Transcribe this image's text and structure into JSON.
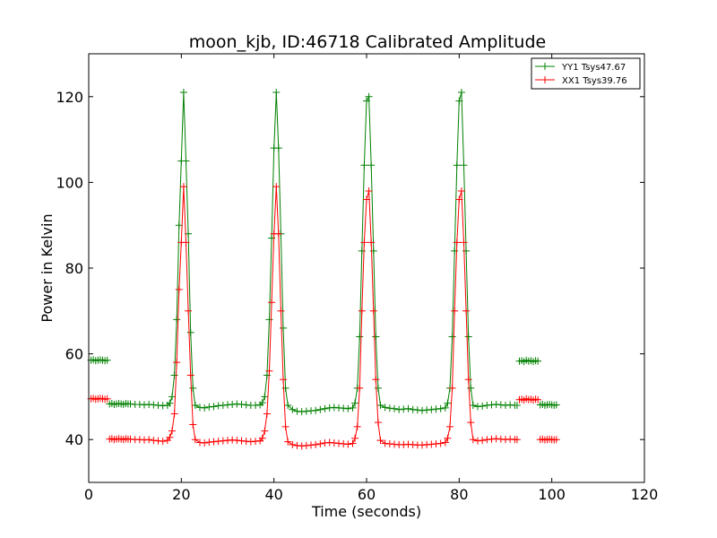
{
  "chart_data": {
    "type": "line",
    "title": "moon_kjb, ID:46718 Calibrated Amplitude",
    "xlabel": "Time (seconds)",
    "ylabel": "Power in Kelvin",
    "xlim": [
      0,
      120
    ],
    "ylim": [
      30,
      130
    ],
    "xticks": [
      0,
      20,
      40,
      60,
      80,
      100,
      120
    ],
    "yticks": [
      40,
      60,
      80,
      100,
      120
    ],
    "grid": false,
    "legend_position": "top-right",
    "marker": "+",
    "series": [
      {
        "name": "YY1 Tsys47.67",
        "color": "#008000",
        "segments": [
          {
            "x": [
              0.5,
              1.0,
              1.5,
              2.0,
              2.5,
              3.0,
              3.5,
              4.0
            ],
            "y": [
              58.5,
              58.6,
              58.4,
              58.5,
              58.6,
              58.5,
              58.4,
              58.5
            ]
          },
          {
            "x": [
              4.5,
              5.0,
              5.5,
              6.0,
              6.5,
              7.0,
              7.5,
              8.0,
              8.5,
              9.0
            ],
            "y": [
              48.3,
              48.4,
              48.2,
              48.3,
              48.4,
              48.3,
              48.2,
              48.4,
              48.3,
              48.3
            ]
          },
          {
            "x": [
              10.0,
              11.0,
              12.0,
              13.0,
              14.0,
              15.0,
              16.0,
              17.0,
              17.5,
              18.0,
              18.5,
              19.0,
              19.5,
              20.0,
              20.5,
              21.0,
              21.5,
              22.0,
              22.5,
              23.0,
              24.0,
              25.0,
              26.0,
              27.0,
              28.0,
              29.0,
              30.0,
              31.0,
              32.0,
              33.0,
              34.0,
              35.0,
              36.0,
              37.0,
              37.5,
              38.0,
              38.5,
              39.0,
              39.5,
              40.0,
              40.5,
              41.0,
              41.5,
              42.0,
              42.5,
              43.0,
              44.0,
              45.0,
              46.0,
              47.0,
              48.0,
              49.0,
              50.0,
              51.0,
              52.0,
              53.0,
              54.0,
              55.0,
              56.0,
              57.0,
              57.5,
              58.0,
              58.5,
              59.0,
              59.5,
              60.0,
              60.5,
              61.0,
              61.5,
              62.0,
              62.5,
              63.0,
              64.0,
              65.0,
              66.0,
              67.0,
              68.0,
              69.0,
              70.0,
              71.0,
              72.0,
              73.0,
              74.0,
              75.0,
              76.0,
              77.0,
              77.5,
              78.0,
              78.5,
              79.0,
              79.5,
              80.0,
              80.5,
              81.0,
              81.5,
              82.0,
              82.5,
              83.0,
              84.0,
              85.0,
              86.0,
              87.0,
              88.0,
              89.0,
              90.0,
              91.0,
              92.0,
              92.5
            ],
            "y": [
              48.2,
              48.2,
              48.1,
              48.2,
              48.1,
              48.0,
              47.9,
              48.0,
              48.5,
              50.0,
              55.0,
              68.0,
              90.0,
              105.0,
              121.0,
              105.0,
              88.0,
              65.0,
              52.0,
              48.0,
              47.5,
              47.4,
              47.6,
              47.7,
              47.9,
              48.0,
              48.1,
              48.2,
              48.3,
              48.2,
              48.1,
              48.0,
              48.0,
              48.1,
              48.6,
              50.0,
              55.0,
              68.0,
              87.0,
              108.0,
              121.0,
              108.0,
              88.0,
              66.0,
              52.0,
              48.0,
              47.0,
              46.6,
              46.5,
              46.6,
              46.7,
              46.8,
              47.0,
              47.2,
              47.4,
              47.5,
              47.4,
              47.3,
              47.2,
              47.4,
              48.5,
              52.0,
              64.0,
              84.0,
              104.0,
              119.0,
              120.0,
              104.0,
              84.0,
              64.0,
              52.0,
              48.0,
              47.5,
              47.3,
              47.2,
              47.0,
              47.1,
              47.2,
              47.0,
              46.9,
              46.8,
              46.9,
              47.0,
              47.1,
              47.2,
              47.4,
              48.5,
              52.0,
              64.0,
              84.0,
              104.0,
              119.0,
              121.0,
              104.0,
              84.0,
              64.0,
              52.0,
              48.0,
              47.7,
              47.8,
              48.0,
              48.1,
              48.2,
              48.1,
              48.0,
              48.1,
              48.0,
              48.0
            ]
          },
          {
            "x": [
              93.0,
              93.5,
              94.0,
              94.5,
              95.0,
              95.5,
              96.0,
              96.5,
              97.0
            ],
            "y": [
              58.3,
              58.4,
              58.2,
              58.5,
              58.3,
              58.4,
              58.2,
              58.4,
              58.3
            ]
          },
          {
            "x": [
              97.5,
              98.0,
              98.5,
              99.0,
              99.5,
              100.0,
              100.5,
              101.0
            ],
            "y": [
              48.1,
              48.2,
              48.0,
              48.1,
              48.2,
              48.1,
              48.0,
              48.1
            ]
          }
        ]
      },
      {
        "name": "XX1 Tsys39.76",
        "color": "#ff0000",
        "segments": [
          {
            "x": [
              0.5,
              1.0,
              1.5,
              2.0,
              2.5,
              3.0,
              3.5,
              4.0
            ],
            "y": [
              49.5,
              49.6,
              49.4,
              49.5,
              49.6,
              49.5,
              49.4,
              49.5
            ]
          },
          {
            "x": [
              4.5,
              5.0,
              5.5,
              6.0,
              6.5,
              7.0,
              7.5,
              8.0,
              8.5,
              9.0
            ],
            "y": [
              40.1,
              40.2,
              40.0,
              40.1,
              40.2,
              40.1,
              40.0,
              40.2,
              40.1,
              40.1
            ]
          },
          {
            "x": [
              10.0,
              11.0,
              12.0,
              13.0,
              14.0,
              15.0,
              16.0,
              17.0,
              17.5,
              18.0,
              18.5,
              19.0,
              19.5,
              20.0,
              20.5,
              21.0,
              21.5,
              22.0,
              22.5,
              23.0,
              24.0,
              25.0,
              26.0,
              27.0,
              28.0,
              29.0,
              30.0,
              31.0,
              32.0,
              33.0,
              34.0,
              35.0,
              36.0,
              37.0,
              37.5,
              38.0,
              38.5,
              39.0,
              39.5,
              40.0,
              40.5,
              41.0,
              41.5,
              42.0,
              42.5,
              43.0,
              44.0,
              45.0,
              46.0,
              47.0,
              48.0,
              49.0,
              50.0,
              51.0,
              52.0,
              53.0,
              54.0,
              55.0,
              56.0,
              57.0,
              57.5,
              58.0,
              58.5,
              59.0,
              59.5,
              60.0,
              60.5,
              61.0,
              61.5,
              62.0,
              62.5,
              63.0,
              64.0,
              65.0,
              66.0,
              67.0,
              68.0,
              69.0,
              70.0,
              71.0,
              72.0,
              73.0,
              74.0,
              75.0,
              76.0,
              77.0,
              77.5,
              78.0,
              78.5,
              79.0,
              79.5,
              80.0,
              80.5,
              81.0,
              81.5,
              82.0,
              82.5,
              83.0,
              84.0,
              85.0,
              86.0,
              87.0,
              88.0,
              89.0,
              90.0,
              91.0,
              92.0,
              92.5
            ],
            "y": [
              40.0,
              40.0,
              39.9,
              40.0,
              39.8,
              39.7,
              39.6,
              39.8,
              40.5,
              42.0,
              46.0,
              58.0,
              75.0,
              86.0,
              99.0,
              86.0,
              70.0,
              55.0,
              43.5,
              40.0,
              39.3,
              39.2,
              39.4,
              39.5,
              39.6,
              39.7,
              39.8,
              39.9,
              39.8,
              39.7,
              39.6,
              39.5,
              39.6,
              39.7,
              40.3,
              42.0,
              46.0,
              56.0,
              72.0,
              88.0,
              99.0,
              88.0,
              70.0,
              54.0,
              43.0,
              39.5,
              38.8,
              38.6,
              38.5,
              38.6,
              38.7,
              38.8,
              39.0,
              39.2,
              39.3,
              39.2,
              39.1,
              39.0,
              38.9,
              39.1,
              40.3,
              43.0,
              52.0,
              70.0,
              86.0,
              96.0,
              98.0,
              86.0,
              70.0,
              54.0,
              44.0,
              39.8,
              39.1,
              39.0,
              38.9,
              38.8,
              38.8,
              38.9,
              38.8,
              38.7,
              38.7,
              38.8,
              38.9,
              39.0,
              39.1,
              39.3,
              40.3,
              43.0,
              52.0,
              70.0,
              86.0,
              96.0,
              98.0,
              86.0,
              70.0,
              54.0,
              44.0,
              40.0,
              39.7,
              39.8,
              40.0,
              40.1,
              40.2,
              40.1,
              40.0,
              40.1,
              40.0,
              40.0
            ]
          },
          {
            "x": [
              93.0,
              93.5,
              94.0,
              94.5,
              95.0,
              95.5,
              96.0,
              96.5,
              97.0
            ],
            "y": [
              49.3,
              49.4,
              49.2,
              49.5,
              49.3,
              49.4,
              49.2,
              49.4,
              49.3
            ]
          },
          {
            "x": [
              97.5,
              98.0,
              98.5,
              99.0,
              99.5,
              100.0,
              100.5,
              101.0
            ],
            "y": [
              40.0,
              40.1,
              39.9,
              40.0,
              40.1,
              40.0,
              39.9,
              40.0
            ]
          }
        ]
      }
    ]
  }
}
